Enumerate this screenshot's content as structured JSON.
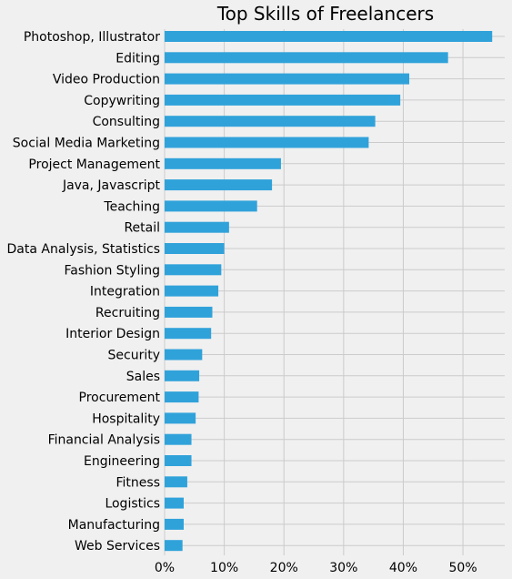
{
  "chart_data": {
    "type": "bar",
    "orientation": "horizontal",
    "title": "Top Skills of Freelancers",
    "xlabel": "",
    "ylabel": "",
    "xlim": [
      0,
      57
    ],
    "x_ticks": [
      0,
      10,
      20,
      30,
      40,
      50
    ],
    "x_tick_labels": [
      "0%",
      "10%",
      "20%",
      "30%",
      "40%",
      "50%"
    ],
    "grid": true,
    "bar_color": "#30a2da",
    "background_color": "#f0f0f0",
    "categories": [
      "Photoshop, Illustrator",
      "Editing",
      "Video Production",
      "Copywriting",
      "Consulting",
      "Social Media Marketing",
      "Project Management",
      "Java, Javascript",
      "Teaching",
      "Retail",
      "Data Analysis, Statistics",
      "Fashion Styling",
      "Integration",
      "Recruiting",
      "Interior Design",
      "Security",
      "Sales",
      "Procurement",
      "Hospitality",
      "Financial Analysis",
      "Engineering",
      "Fitness",
      "Logistics",
      "Manufacturing",
      "Web Services"
    ],
    "values": [
      54.9,
      47.5,
      41.0,
      39.5,
      35.3,
      34.2,
      19.5,
      18.0,
      15.5,
      10.8,
      10.0,
      9.5,
      9.0,
      8.0,
      7.8,
      6.3,
      5.8,
      5.7,
      5.2,
      4.5,
      4.5,
      3.8,
      3.2,
      3.2,
      3.0
    ]
  }
}
